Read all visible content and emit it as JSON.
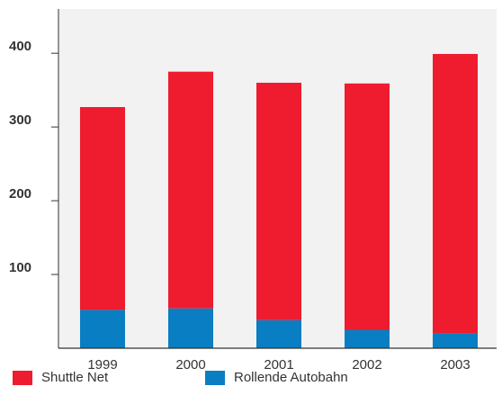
{
  "chart_data": {
    "type": "bar",
    "stacked": true,
    "categories": [
      "1999",
      "2000",
      "2001",
      "2002",
      "2003"
    ],
    "series": [
      {
        "name": "Rollende Autobahn",
        "color": "#0a7ec2",
        "values": [
          52,
          54,
          38,
          25,
          20
        ]
      },
      {
        "name": "Shuttle Net",
        "color": "#ee1c2e",
        "values": [
          275,
          321,
          322,
          334,
          379
        ]
      }
    ],
    "yticks": [
      100,
      200,
      300,
      400
    ],
    "ylim": [
      0,
      460
    ],
    "background": "#f2f2f2",
    "grid": false,
    "legend_position": "bottom"
  }
}
